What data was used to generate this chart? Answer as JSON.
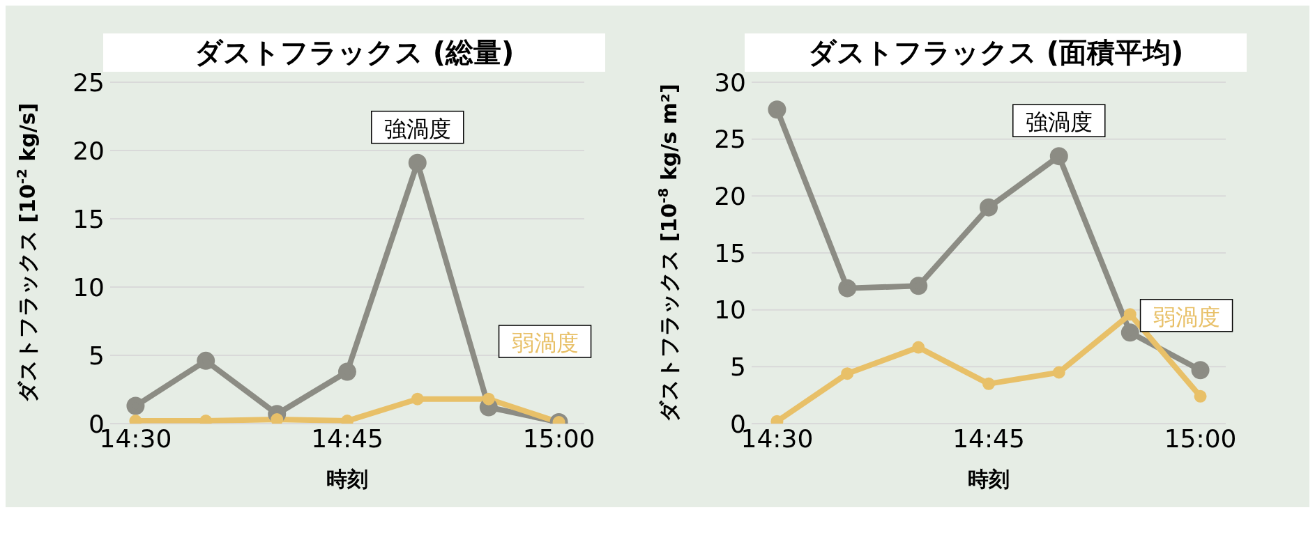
{
  "chart_data": [
    {
      "type": "line",
      "title": "ダストフラックス (総量)",
      "xlabel": "時刻",
      "ylabel": "ダストフラックス [10$^{-2}$ kg/s]",
      "x": [
        14.5,
        14.583,
        14.667,
        14.75,
        14.833,
        14.917,
        15
      ],
      "xlim": [
        14.47,
        15.03
      ],
      "xticks": [
        {
          "value": 14.5,
          "label": "14:30"
        },
        {
          "value": 14.75,
          "label": "14:45"
        },
        {
          "value": 15,
          "label": "15:00"
        }
      ],
      "ylim": [
        0,
        25
      ],
      "yticks": [
        0,
        5,
        10,
        15,
        20,
        25
      ],
      "grid": "y",
      "marker": "circle",
      "line_style": "solid",
      "series": [
        {
          "name": "強渦度",
          "color": "#8c8c84",
          "values": [
            1.3,
            4.6,
            0.7,
            3.8,
            19.1,
            1.2,
            0.1
          ]
        },
        {
          "name": "弱渦度",
          "color": "#e8c068",
          "values": [
            0.2,
            0.2,
            0.3,
            0.2,
            1.8,
            1.8,
            0.1
          ]
        }
      ]
    },
    {
      "type": "line",
      "title": "ダストフラックス (面積平均)",
      "xlabel": "時刻",
      "ylabel": "ダストフラックス [10$^{-8}$ kg/s m²]",
      "x": [
        14.5,
        14.583,
        14.667,
        14.75,
        14.833,
        14.917,
        15
      ],
      "xlim": [
        14.47,
        15.03
      ],
      "xticks": [
        {
          "value": 14.5,
          "label": "14:30"
        },
        {
          "value": 14.75,
          "label": "14:45"
        },
        {
          "value": 15,
          "label": "15:00"
        }
      ],
      "ylim": [
        0,
        30
      ],
      "yticks": [
        0,
        5,
        10,
        15,
        20,
        25,
        30
      ],
      "grid": "y",
      "marker": "circle",
      "line_style": "solid",
      "series": [
        {
          "name": "強渦度",
          "color": "#8c8c84",
          "values": [
            27.6,
            11.9,
            12.1,
            19.0,
            23.5,
            8.0,
            4.7
          ]
        },
        {
          "name": "弱渦度",
          "color": "#e8c068",
          "values": [
            0.2,
            4.4,
            6.7,
            3.5,
            4.5,
            9.6,
            2.4
          ]
        }
      ]
    }
  ]
}
